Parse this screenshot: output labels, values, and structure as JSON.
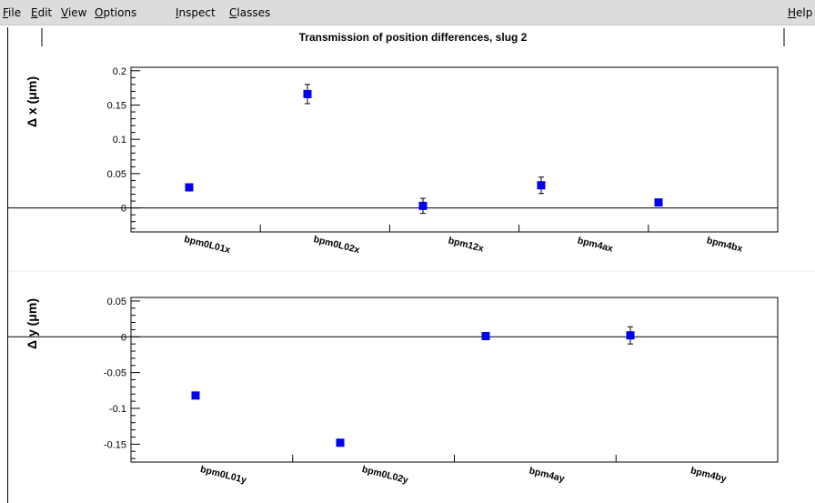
{
  "menubar": {
    "items": [
      {
        "label": "File",
        "ul": "F",
        "rest": "ile"
      },
      {
        "label": "Edit",
        "ul": "E",
        "rest": "dit"
      },
      {
        "label": "View",
        "ul": "V",
        "rest": "iew"
      },
      {
        "label": "Options",
        "ul": "O",
        "rest": "ptions"
      },
      {
        "label": "Inspect",
        "ul": "I",
        "rest": "nspect"
      },
      {
        "label": "Classes",
        "ul": "C",
        "rest": "lasses"
      }
    ],
    "help": {
      "label": "Help",
      "ul": "H",
      "rest": "elp"
    }
  },
  "title": "Transmission of position differences, slug  2",
  "chart_data": [
    {
      "type": "scatter",
      "ylabel": "Δ x (μm)",
      "ylim": [
        -0.035,
        0.205
      ],
      "yticks": [
        0,
        0.05,
        0.1,
        0.15,
        0.2
      ],
      "ytick_labels": [
        "0",
        "0.05",
        "0.1",
        "0.15",
        "0.2"
      ],
      "categories": [
        "bpm0L01x",
        "bpm0L02x",
        "bpm12x",
        "bpm4ax",
        "bpm4bx"
      ],
      "values": [
        0.03,
        0.166,
        0.003,
        0.033,
        0.008
      ],
      "errors": [
        0.0,
        0.014,
        0.011,
        0.012,
        0.0
      ],
      "color": "#0000ee"
    },
    {
      "type": "scatter",
      "ylabel": "Δ y (μm)",
      "ylim": [
        -0.175,
        0.055
      ],
      "yticks": [
        0.05,
        0,
        -0.05,
        -0.1,
        -0.15
      ],
      "ytick_labels": [
        "0.05",
        "0",
        "-0.05",
        "-0.1",
        "-0.15"
      ],
      "categories": [
        "bpm0L01y",
        "bpm0L02y",
        "bpm4ay",
        "bpm4by"
      ],
      "values": [
        -0.082,
        -0.148,
        0.001,
        0.002
      ],
      "errors": [
        0.0,
        0.0,
        0.0,
        0.012
      ],
      "color": "#0000ee"
    }
  ]
}
